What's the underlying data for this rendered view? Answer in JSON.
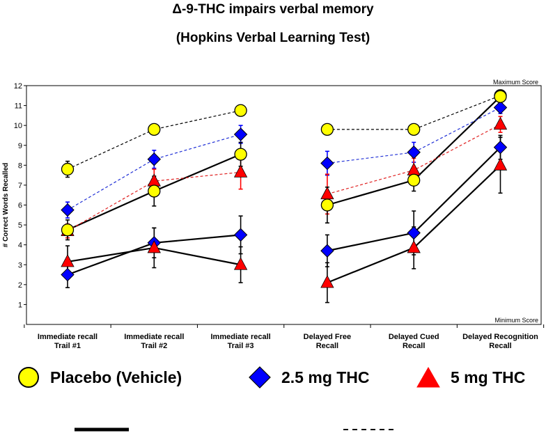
{
  "chart_data": {
    "type": "line",
    "title": "Δ-9-THC impairs verbal memory",
    "subtitle": "(Hopkins Verbal Learning Test)",
    "ylabel": "# Correct Words Recalled",
    "ylim": [
      0,
      12
    ],
    "yticks": [
      1,
      2,
      3,
      4,
      5,
      6,
      7,
      8,
      9,
      10,
      11,
      12
    ],
    "annotations": {
      "max": "Maximum Score",
      "min": "Minimum Score"
    },
    "categories": [
      [
        "Immediate recall",
        "Trail #1"
      ],
      [
        "Immediate recall",
        "Trail #2"
      ],
      [
        "Immediate recall",
        "Trail #3"
      ],
      [
        "Delayed Free",
        "Recall"
      ],
      [
        "Delayed Cued",
        "Recall"
      ],
      [
        "Delayed Recognition",
        "Recall"
      ]
    ],
    "segments": [
      [
        0,
        1,
        2
      ],
      [
        3,
        4,
        5
      ]
    ],
    "series": [
      {
        "name": "Placebo (Vehicle)",
        "group": "dashed",
        "marker": "circle",
        "color": "#ffff00",
        "lineColor": "#000000",
        "values": [
          7.8,
          9.8,
          10.75,
          9.8,
          9.8,
          11.5
        ],
        "errors": [
          0.4,
          0.15,
          0.1,
          0.15,
          0.15,
          0.2
        ]
      },
      {
        "name": "2.5 mg THC",
        "group": "dashed",
        "marker": "diamond",
        "color": "#0000ff",
        "lineColor": "#1f2fd6",
        "values": [
          5.75,
          8.3,
          9.55,
          8.1,
          8.65,
          10.9
        ],
        "errors": [
          0.4,
          0.45,
          0.45,
          0.6,
          0.5,
          0.3
        ]
      },
      {
        "name": "5 mg THC",
        "group": "dashed",
        "marker": "triangle",
        "color": "#ff0000",
        "lineColor": "#e02020",
        "values": [
          4.7,
          7.2,
          7.65,
          6.55,
          7.75,
          10.05
        ],
        "errors": [
          0.35,
          0.6,
          0.85,
          1.0,
          0.6,
          0.4
        ]
      },
      {
        "name": "Placebo (Vehicle)",
        "group": "solid",
        "marker": "circle",
        "color": "#ffff00",
        "lineColor": "#000000",
        "values": [
          4.75,
          6.7,
          8.55,
          6.0,
          7.25,
          11.45
        ],
        "errors": [
          0.5,
          0.75,
          0.6,
          0.9,
          0.55,
          0.3
        ]
      },
      {
        "name": "2.5 mg THC",
        "group": "solid",
        "marker": "diamond",
        "color": "#0000ff",
        "lineColor": "#000000",
        "values": [
          2.5,
          4.1,
          4.5,
          3.7,
          4.6,
          8.9
        ],
        "errors": [
          0.65,
          0.75,
          0.95,
          0.8,
          1.1,
          0.6
        ]
      },
      {
        "name": "5 mg THC",
        "group": "solid",
        "marker": "triangle",
        "color": "#ff0000",
        "lineColor": "#000000",
        "values": [
          3.15,
          3.85,
          3.0,
          2.1,
          3.85,
          8.0
        ],
        "errors": [
          0.8,
          1.0,
          0.9,
          1.0,
          1.05,
          1.4
        ]
      }
    ],
    "legend": {
      "placement": "bottom",
      "items": [
        {
          "label": "Placebo (Vehicle)",
          "marker": "circle",
          "color": "#ffff00"
        },
        {
          "label": "2.5 mg THC",
          "marker": "diamond",
          "color": "#0000ff"
        },
        {
          "label": "5 mg THC",
          "marker": "triangle",
          "color": "#ff0000"
        }
      ]
    }
  }
}
